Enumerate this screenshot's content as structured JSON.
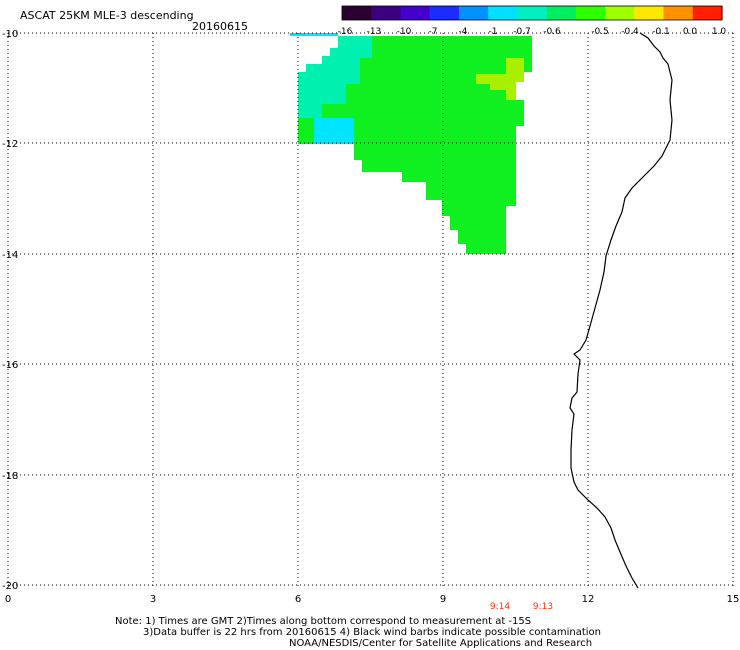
{
  "header": {
    "title": "ASCAT 25KM MLE-3 descending",
    "date": "20160615"
  },
  "colorbar": {
    "labels": [
      "-16",
      "-13",
      "-10",
      "-7",
      "-4",
      "-1",
      "-0.7",
      "-0.6",
      "-0.5",
      "-0.4",
      "-0.1",
      "0.0",
      "1.0"
    ],
    "colors": [
      "#2a0030",
      "#3a0080",
      "#4400cc",
      "#1a2cff",
      "#0090ff",
      "#00e0ff",
      "#00f0c0",
      "#00ee60",
      "#30ff00",
      "#a0ff00",
      "#ffe800",
      "#ff9000",
      "#ff2000"
    ]
  },
  "map": {
    "x_axis": {
      "ticks": [
        "0",
        "3",
        "6",
        "9",
        "12",
        "15"
      ]
    },
    "y_axis": {
      "ticks": [
        "-10",
        "-12",
        "-14",
        "-16",
        "-18",
        "-20"
      ]
    },
    "time_labels": [
      "9:14",
      "9:13"
    ],
    "colors": {
      "cyan": "#00e5ff",
      "cyan_green": "#00f0b0",
      "green": "#10f020",
      "yellow_green": "#a8f000",
      "grid": "#000000",
      "coast": "#000000",
      "time_label": "#ff3000"
    }
  },
  "notes": {
    "line1": "Note: 1) Times are GMT 2)Times along bottom correspond to measurement at -15S",
    "line2": "3)Data buffer is 22 hrs from 20160615 4) Black wind barbs indicate possible contamination",
    "line3": "NOAA/NESDIS/Center for Satellite Applications and Research"
  }
}
